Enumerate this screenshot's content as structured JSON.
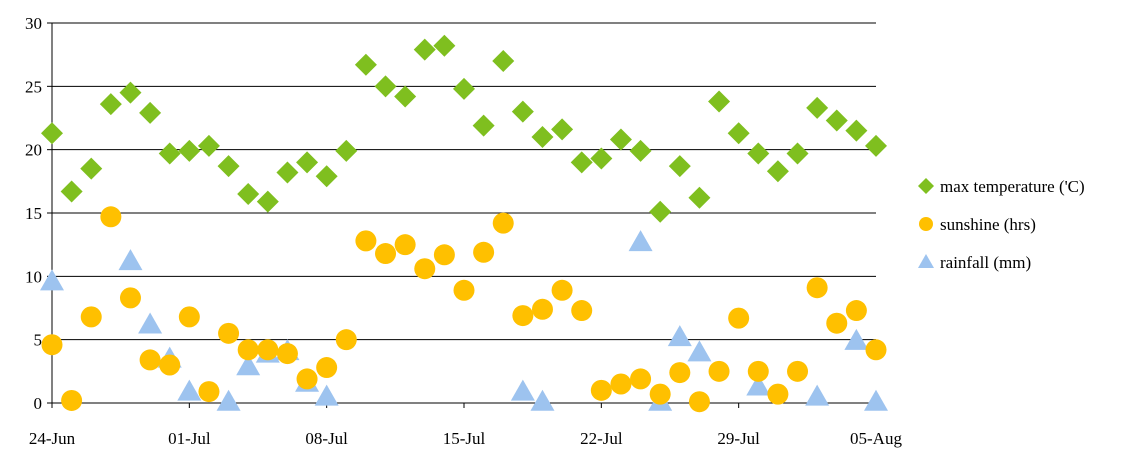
{
  "chart_data": {
    "type": "scatter",
    "title": "",
    "xlabel": "",
    "ylabel": "",
    "x_axis": {
      "start_date": "2024-06-24",
      "end_date": "2024-08-05",
      "tick_labels": [
        "24-Jun",
        "01-Jul",
        "08-Jul",
        "15-Jul",
        "22-Jul",
        "29-Jul",
        "05-Aug"
      ]
    },
    "ylim": [
      0,
      30
    ],
    "y_ticks": [
      0,
      5,
      10,
      15,
      20,
      25,
      30
    ],
    "grid": "horizontal",
    "legend_position": "right",
    "series": [
      {
        "name": "max temperature ('C)",
        "marker": "diamond",
        "color": "#7fbf1f",
        "points": [
          [
            "24-Jun",
            21.3
          ],
          [
            "25-Jun",
            16.7
          ],
          [
            "26-Jun",
            18.5
          ],
          [
            "27-Jun",
            23.6
          ],
          [
            "28-Jun",
            24.5
          ],
          [
            "29-Jun",
            22.9
          ],
          [
            "30-Jun",
            19.7
          ],
          [
            "01-Jul",
            19.9
          ],
          [
            "02-Jul",
            20.3
          ],
          [
            "03-Jul",
            18.7
          ],
          [
            "04-Jul",
            16.5
          ],
          [
            "05-Jul",
            15.9
          ],
          [
            "06-Jul",
            18.2
          ],
          [
            "07-Jul",
            19.0
          ],
          [
            "08-Jul",
            17.9
          ],
          [
            "09-Jul",
            19.9
          ],
          [
            "10-Jul",
            26.7
          ],
          [
            "11-Jul",
            25.0
          ],
          [
            "12-Jul",
            24.2
          ],
          [
            "13-Jul",
            27.9
          ],
          [
            "14-Jul",
            28.2
          ],
          [
            "15-Jul",
            24.8
          ],
          [
            "16-Jul",
            21.9
          ],
          [
            "17-Jul",
            27.0
          ],
          [
            "18-Jul",
            23.0
          ],
          [
            "19-Jul",
            21.0
          ],
          [
            "20-Jul",
            21.6
          ],
          [
            "21-Jul",
            19.0
          ],
          [
            "22-Jul",
            19.3
          ],
          [
            "23-Jul",
            20.8
          ],
          [
            "24-Jul",
            19.9
          ],
          [
            "25-Jul",
            15.1
          ],
          [
            "26-Jul",
            18.7
          ],
          [
            "27-Jul",
            16.2
          ],
          [
            "28-Jul",
            23.8
          ],
          [
            "29-Jul",
            21.3
          ],
          [
            "30-Jul",
            19.7
          ],
          [
            "31-Jul",
            18.3
          ],
          [
            "01-Aug",
            19.7
          ],
          [
            "02-Aug",
            23.3
          ],
          [
            "03-Aug",
            22.3
          ],
          [
            "04-Aug",
            21.5
          ],
          [
            "05-Aug",
            20.3
          ]
        ]
      },
      {
        "name": "sunshine (hrs)",
        "marker": "circle",
        "color": "#ffc000",
        "points": [
          [
            "24-Jun",
            4.6
          ],
          [
            "25-Jun",
            0.2
          ],
          [
            "26-Jun",
            6.8
          ],
          [
            "27-Jun",
            14.7
          ],
          [
            "28-Jun",
            8.3
          ],
          [
            "29-Jun",
            3.4
          ],
          [
            "30-Jun",
            3.0
          ],
          [
            "01-Jul",
            6.8
          ],
          [
            "02-Jul",
            0.9
          ],
          [
            "03-Jul",
            5.5
          ],
          [
            "04-Jul",
            4.2
          ],
          [
            "05-Jul",
            4.2
          ],
          [
            "06-Jul",
            3.9
          ],
          [
            "07-Jul",
            1.9
          ],
          [
            "08-Jul",
            2.8
          ],
          [
            "09-Jul",
            5.0
          ],
          [
            "10-Jul",
            12.8
          ],
          [
            "11-Jul",
            11.8
          ],
          [
            "12-Jul",
            12.5
          ],
          [
            "13-Jul",
            10.6
          ],
          [
            "14-Jul",
            11.7
          ],
          [
            "15-Jul",
            8.9
          ],
          [
            "16-Jul",
            11.9
          ],
          [
            "17-Jul",
            14.2
          ],
          [
            "18-Jul",
            6.9
          ],
          [
            "19-Jul",
            7.4
          ],
          [
            "20-Jul",
            8.9
          ],
          [
            "21-Jul",
            7.3
          ],
          [
            "22-Jul",
            1.0
          ],
          [
            "23-Jul",
            1.5
          ],
          [
            "24-Jul",
            1.9
          ],
          [
            "25-Jul",
            0.7
          ],
          [
            "26-Jul",
            2.4
          ],
          [
            "27-Jul",
            0.1
          ],
          [
            "28-Jul",
            2.5
          ],
          [
            "29-Jul",
            6.7
          ],
          [
            "30-Jul",
            2.5
          ],
          [
            "31-Jul",
            0.7
          ],
          [
            "01-Aug",
            2.5
          ],
          [
            "02-Aug",
            9.1
          ],
          [
            "03-Aug",
            6.3
          ],
          [
            "04-Aug",
            7.3
          ],
          [
            "05-Aug",
            4.2
          ]
        ]
      },
      {
        "name": "rainfall (mm)",
        "marker": "triangle",
        "color": "#9dc3ef",
        "points": [
          [
            "24-Jun",
            9.6
          ],
          [
            "28-Jun",
            11.2
          ],
          [
            "29-Jun",
            6.2
          ],
          [
            "30-Jun",
            3.5
          ],
          [
            "01-Jul",
            0.9
          ],
          [
            "03-Jul",
            0.1
          ],
          [
            "04-Jul",
            2.9
          ],
          [
            "05-Jul",
            3.9
          ],
          [
            "06-Jul",
            4.1
          ],
          [
            "07-Jul",
            1.6
          ],
          [
            "08-Jul",
            0.5
          ],
          [
            "18-Jul",
            0.9
          ],
          [
            "19-Jul",
            0.1
          ],
          [
            "24-Jul",
            12.7
          ],
          [
            "25-Jul",
            0.1
          ],
          [
            "26-Jul",
            5.2
          ],
          [
            "27-Jul",
            4.0
          ],
          [
            "30-Jul",
            1.3
          ],
          [
            "02-Aug",
            0.5
          ],
          [
            "04-Aug",
            4.9
          ],
          [
            "05-Aug",
            0.1
          ]
        ]
      }
    ]
  }
}
